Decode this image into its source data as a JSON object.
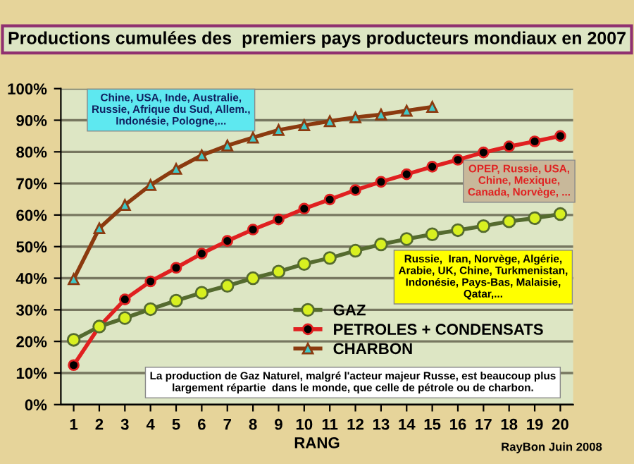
{
  "chart_data": {
    "type": "line",
    "title": "Productions cumulées des  premiers pays producteurs mondiaux en 2007",
    "xlabel": "RANG",
    "categories": [
      "1",
      "2",
      "3",
      "4",
      "5",
      "6",
      "7",
      "8",
      "9",
      "10",
      "11",
      "12",
      "13",
      "14",
      "15",
      "16",
      "17",
      "18",
      "19",
      "20"
    ],
    "series": [
      {
        "name": "GAZ",
        "color": "#556b2f",
        "marker": "circle",
        "values": [
          20.5,
          24.7,
          27.4,
          30.2,
          32.9,
          35.4,
          37.6,
          40,
          42.1,
          44.5,
          46.4,
          48.7,
          50.7,
          52.4,
          53.9,
          55.2,
          56.5,
          58,
          59,
          60.3
        ]
      },
      {
        "name": "PETROLES + CONDENSATS",
        "color": "#e02020",
        "marker": "circle",
        "values": [
          12.5,
          24.7,
          33.3,
          39,
          43.3,
          47.8,
          51.8,
          55.4,
          58.6,
          62,
          64.9,
          67.9,
          70.5,
          72.9,
          75.3,
          77.5,
          79.8,
          81.7,
          83.3,
          85
        ]
      },
      {
        "name": "CHARBON",
        "color": "#8b3a0f",
        "marker": "triangle",
        "values": [
          39.7,
          55.8,
          63.2,
          69.5,
          74.6,
          78.9,
          82,
          84.5,
          86.9,
          88.4,
          89.7,
          90.9,
          91.8,
          93,
          94.2,
          null,
          null,
          null,
          null,
          null
        ]
      }
    ],
    "ylim": [
      0,
      100
    ],
    "yticks": [
      {
        "value": 0,
        "label": "0%"
      },
      {
        "value": 10,
        "label": "10%"
      },
      {
        "value": 20,
        "label": "20%"
      },
      {
        "value": 30,
        "label": "30%"
      },
      {
        "value": 40,
        "label": "40%"
      },
      {
        "value": 50,
        "label": "50%"
      },
      {
        "value": 60,
        "label": "60%"
      },
      {
        "value": 70,
        "label": "70%"
      },
      {
        "value": 80,
        "label": "80%"
      },
      {
        "value": 90,
        "label": "90%"
      },
      {
        "value": 100,
        "label": "100%"
      }
    ],
    "grid": "y",
    "legend": "bottom",
    "line_style": "solid",
    "annotations": [
      "Chine, USA, Inde, Australie,\nRussie, Afrique du Sud, Allem.,\nIndonésie, Pologne,...",
      "OPEP, Russie, USA,\nChine, Mexique,\nCanada, Norvège, ...",
      "Russie,  Iran, Norvège, Algérie,\nArabie, UK, Chine, Turkmenistan,\nIndonésie, Pays-Bas, Malaisie,\nQatar,...",
      "La production de Gaz Naturel, malgré l'acteur majeur Russe, est beaucoup plus\nlargement répartie  dans le monde, que celle de pétrole ou de charbon.",
      "RayBon Juin 2008"
    ]
  }
}
